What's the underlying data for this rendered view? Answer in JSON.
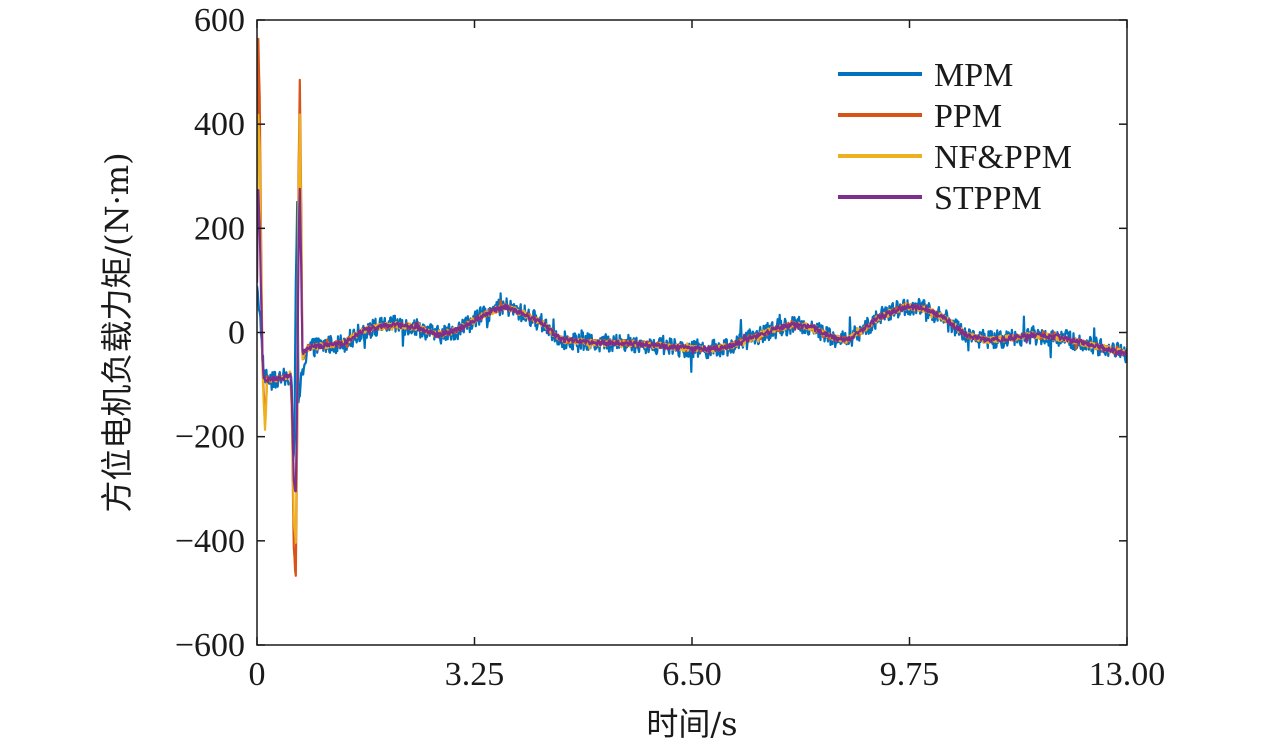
{
  "chart_data": {
    "type": "line",
    "title": "",
    "xlabel": "时间/s",
    "ylabel": "方位电机负载力矩/(N·m)",
    "xlim": [
      0,
      13
    ],
    "ylim": [
      -600,
      600
    ],
    "x_ticks": [
      0,
      3.25,
      6.5,
      9.75,
      13
    ],
    "x_tick_labels": [
      "0",
      "3.25",
      "6.50",
      "9.75",
      "13.00"
    ],
    "y_ticks": [
      -600,
      -400,
      -200,
      0,
      200,
      400,
      600
    ],
    "y_tick_labels": [
      "−600",
      "−400",
      "−200",
      "0",
      "200",
      "400",
      "600"
    ],
    "grid": false,
    "legend_position": "top-right",
    "series": [
      {
        "name": "MPM",
        "color": "#0072BD",
        "noise": 18,
        "points": [
          [
            0,
            100
          ],
          [
            0.04,
            40
          ],
          [
            0.1,
            -80
          ],
          [
            0.2,
            -95
          ],
          [
            0.35,
            -90
          ],
          [
            0.5,
            -80
          ],
          [
            0.52,
            -120
          ],
          [
            0.54,
            -250
          ],
          [
            0.56,
            -200
          ],
          [
            0.58,
            100
          ],
          [
            0.6,
            250
          ],
          [
            0.62,
            -150
          ],
          [
            0.65,
            -100
          ],
          [
            0.75,
            -30
          ],
          [
            1.0,
            -25
          ],
          [
            1.3,
            -20
          ],
          [
            1.6,
            5
          ],
          [
            2.0,
            15
          ],
          [
            2.4,
            10
          ],
          [
            2.7,
            -5
          ],
          [
            3.0,
            5
          ],
          [
            3.4,
            35
          ],
          [
            3.7,
            50
          ],
          [
            4.0,
            35
          ],
          [
            4.3,
            15
          ],
          [
            4.45,
            -5
          ],
          [
            4.6,
            -15
          ],
          [
            4.7,
            -15
          ],
          [
            5.0,
            -20
          ],
          [
            5.5,
            -20
          ],
          [
            6.0,
            -25
          ],
          [
            6.4,
            -30
          ],
          [
            6.8,
            -32
          ],
          [
            7.1,
            -25
          ],
          [
            7.4,
            -10
          ],
          [
            7.7,
            5
          ],
          [
            8.0,
            15
          ],
          [
            8.3,
            10
          ],
          [
            8.6,
            -10
          ],
          [
            8.8,
            -15
          ],
          [
            9.0,
            0
          ],
          [
            9.3,
            30
          ],
          [
            9.7,
            50
          ],
          [
            10.0,
            45
          ],
          [
            10.3,
            25
          ],
          [
            10.6,
            -5
          ],
          [
            10.9,
            -15
          ],
          [
            11.3,
            -10
          ],
          [
            11.6,
            -5
          ],
          [
            12.0,
            -10
          ],
          [
            12.5,
            -25
          ],
          [
            13.0,
            -40
          ]
        ]
      },
      {
        "name": "PPM",
        "color": "#D95319",
        "noise": 6,
        "points": [
          [
            0,
            100
          ],
          [
            0.01,
            400
          ],
          [
            0.02,
            560
          ],
          [
            0.04,
            450
          ],
          [
            0.06,
            200
          ],
          [
            0.08,
            -50
          ],
          [
            0.1,
            -120
          ],
          [
            0.12,
            -170
          ],
          [
            0.15,
            -90
          ],
          [
            0.35,
            -90
          ],
          [
            0.5,
            -80
          ],
          [
            0.52,
            -150
          ],
          [
            0.55,
            -420
          ],
          [
            0.58,
            -470
          ],
          [
            0.6,
            -200
          ],
          [
            0.62,
            300
          ],
          [
            0.64,
            490
          ],
          [
            0.66,
            250
          ],
          [
            0.68,
            -50
          ],
          [
            0.75,
            -30
          ],
          [
            1.0,
            -25
          ],
          [
            1.3,
            -20
          ],
          [
            1.6,
            5
          ],
          [
            2.0,
            15
          ],
          [
            2.4,
            10
          ],
          [
            2.7,
            -5
          ],
          [
            3.0,
            5
          ],
          [
            3.4,
            35
          ],
          [
            3.7,
            50
          ],
          [
            4.0,
            35
          ],
          [
            4.3,
            15
          ],
          [
            4.45,
            -5
          ],
          [
            4.6,
            -15
          ],
          [
            4.7,
            -15
          ],
          [
            5.0,
            -20
          ],
          [
            5.5,
            -20
          ],
          [
            6.0,
            -25
          ],
          [
            6.4,
            -30
          ],
          [
            6.8,
            -32
          ],
          [
            7.1,
            -25
          ],
          [
            7.4,
            -10
          ],
          [
            7.7,
            5
          ],
          [
            8.0,
            15
          ],
          [
            8.3,
            10
          ],
          [
            8.6,
            -10
          ],
          [
            8.8,
            -15
          ],
          [
            9.0,
            0
          ],
          [
            9.3,
            30
          ],
          [
            9.7,
            50
          ],
          [
            10.0,
            45
          ],
          [
            10.3,
            25
          ],
          [
            10.6,
            -5
          ],
          [
            10.9,
            -15
          ],
          [
            11.3,
            -10
          ],
          [
            11.6,
            -5
          ],
          [
            12.0,
            -10
          ],
          [
            12.5,
            -25
          ],
          [
            13.0,
            -40
          ]
        ]
      },
      {
        "name": "NF&PPM",
        "color": "#EDB120",
        "noise": 6,
        "points": [
          [
            0,
            100
          ],
          [
            0.01,
            300
          ],
          [
            0.02,
            420
          ],
          [
            0.04,
            350
          ],
          [
            0.06,
            150
          ],
          [
            0.08,
            -60
          ],
          [
            0.1,
            -140
          ],
          [
            0.12,
            -190
          ],
          [
            0.15,
            -90
          ],
          [
            0.35,
            -90
          ],
          [
            0.5,
            -80
          ],
          [
            0.52,
            -150
          ],
          [
            0.55,
            -360
          ],
          [
            0.58,
            -400
          ],
          [
            0.6,
            -150
          ],
          [
            0.62,
            250
          ],
          [
            0.64,
            420
          ],
          [
            0.66,
            200
          ],
          [
            0.68,
            -50
          ],
          [
            0.75,
            -30
          ],
          [
            1.0,
            -25
          ],
          [
            1.3,
            -20
          ],
          [
            1.6,
            5
          ],
          [
            2.0,
            15
          ],
          [
            2.4,
            10
          ],
          [
            2.7,
            -5
          ],
          [
            3.0,
            5
          ],
          [
            3.4,
            35
          ],
          [
            3.7,
            50
          ],
          [
            4.0,
            35
          ],
          [
            4.3,
            15
          ],
          [
            4.45,
            -5
          ],
          [
            4.6,
            -15
          ],
          [
            4.7,
            -15
          ],
          [
            5.0,
            -20
          ],
          [
            5.5,
            -20
          ],
          [
            6.0,
            -25
          ],
          [
            6.4,
            -30
          ],
          [
            6.8,
            -32
          ],
          [
            7.1,
            -25
          ],
          [
            7.4,
            -10
          ],
          [
            7.7,
            5
          ],
          [
            8.0,
            15
          ],
          [
            8.3,
            10
          ],
          [
            8.6,
            -10
          ],
          [
            8.8,
            -15
          ],
          [
            9.0,
            0
          ],
          [
            9.3,
            30
          ],
          [
            9.7,
            50
          ],
          [
            10.0,
            45
          ],
          [
            10.3,
            25
          ],
          [
            10.6,
            -5
          ],
          [
            10.9,
            -15
          ],
          [
            11.3,
            -10
          ],
          [
            11.6,
            -5
          ],
          [
            12.0,
            -10
          ],
          [
            12.5,
            -25
          ],
          [
            13.0,
            -40
          ]
        ]
      },
      {
        "name": "STPPM",
        "color": "#7E2F8E",
        "noise": 5,
        "points": [
          [
            0,
            100
          ],
          [
            0.01,
            220
          ],
          [
            0.02,
            270
          ],
          [
            0.04,
            200
          ],
          [
            0.06,
            80
          ],
          [
            0.08,
            -40
          ],
          [
            0.1,
            -90
          ],
          [
            0.15,
            -90
          ],
          [
            0.35,
            -90
          ],
          [
            0.5,
            -80
          ],
          [
            0.52,
            -130
          ],
          [
            0.55,
            -280
          ],
          [
            0.58,
            -310
          ],
          [
            0.6,
            -120
          ],
          [
            0.62,
            150
          ],
          [
            0.64,
            280
          ],
          [
            0.66,
            120
          ],
          [
            0.68,
            -40
          ],
          [
            0.75,
            -30
          ],
          [
            1.0,
            -25
          ],
          [
            1.3,
            -20
          ],
          [
            1.6,
            5
          ],
          [
            2.0,
            15
          ],
          [
            2.4,
            10
          ],
          [
            2.7,
            -5
          ],
          [
            3.0,
            5
          ],
          [
            3.4,
            35
          ],
          [
            3.7,
            50
          ],
          [
            4.0,
            35
          ],
          [
            4.3,
            15
          ],
          [
            4.45,
            -5
          ],
          [
            4.6,
            -15
          ],
          [
            4.7,
            -15
          ],
          [
            5.0,
            -20
          ],
          [
            5.5,
            -20
          ],
          [
            6.0,
            -25
          ],
          [
            6.4,
            -30
          ],
          [
            6.8,
            -32
          ],
          [
            7.1,
            -25
          ],
          [
            7.4,
            -10
          ],
          [
            7.7,
            5
          ],
          [
            8.0,
            15
          ],
          [
            8.3,
            10
          ],
          [
            8.6,
            -10
          ],
          [
            8.8,
            -15
          ],
          [
            9.0,
            0
          ],
          [
            9.3,
            30
          ],
          [
            9.7,
            50
          ],
          [
            10.0,
            45
          ],
          [
            10.3,
            25
          ],
          [
            10.6,
            -5
          ],
          [
            10.9,
            -15
          ],
          [
            11.3,
            -10
          ],
          [
            11.6,
            -5
          ],
          [
            12.0,
            -10
          ],
          [
            12.5,
            -25
          ],
          [
            13.0,
            -40
          ]
        ]
      }
    ]
  }
}
